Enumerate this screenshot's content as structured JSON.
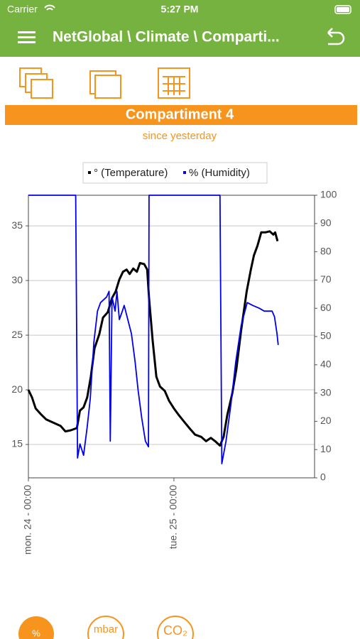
{
  "status_bar": {
    "carrier": "Carrier",
    "time": "5:27 PM"
  },
  "nav_bar": {
    "title": "NetGlobal \\ Climate \\ Comparti..."
  },
  "header": {
    "title": "Compartiment 4",
    "subtitle": "since yesterday"
  },
  "bottom_tabs": [
    "%",
    "mbar",
    "CO₂"
  ],
  "chart_data": {
    "type": "line",
    "grid": true,
    "legend": "top",
    "xlim": [
      0,
      47.2
    ],
    "xticks": [
      {
        "value": 0,
        "label": "mon. 24 - 00:00"
      },
      {
        "value": 24,
        "label": "tue. 25 - 00:00"
      }
    ],
    "ylim": [
      11.95,
      37.8
    ],
    "yticks": [
      15,
      20,
      25,
      30,
      35
    ],
    "y2lim": [
      0,
      100
    ],
    "y2ticks": [
      0,
      10,
      20,
      30,
      40,
      50,
      60,
      70,
      80,
      90,
      100
    ],
    "series": [
      {
        "name": "° (Temperature)",
        "color": "#000000",
        "x": [
          0,
          0.6,
          1.2,
          2.0,
          2.9,
          4.1,
          5.3,
          6.1,
          7.0,
          8.0,
          8.5,
          9.1,
          9.7,
          10.3,
          10.9,
          11.7,
          12.3,
          13.1,
          13.8,
          14.4,
          15.0,
          15.6,
          16.2,
          16.7,
          17.3,
          17.9,
          18.4,
          19.1,
          19.6,
          19.9,
          20.5,
          21.1,
          21.7,
          22.5,
          23.2,
          24.0,
          24.8,
          25.8,
          26.7,
          27.5,
          28.5,
          29.3,
          30.1,
          30.8,
          31.6,
          32.2,
          32.8,
          33.6,
          34.3,
          35.1,
          36.0,
          36.7,
          37.2,
          37.8,
          38.4,
          39.1,
          39.8,
          40.4,
          40.7,
          41.1
        ],
        "values": [
          20.0,
          19.3,
          18.3,
          17.8,
          17.3,
          17.0,
          16.7,
          16.2,
          16.3,
          16.5,
          18.1,
          18.4,
          19.3,
          21.2,
          23.8,
          25.1,
          26.6,
          27.1,
          28.4,
          29.0,
          30.1,
          30.8,
          31.0,
          30.6,
          31.1,
          30.8,
          31.6,
          31.5,
          31.0,
          28.4,
          24.5,
          21.2,
          20.3,
          19.9,
          19.0,
          18.3,
          17.7,
          17.0,
          16.4,
          15.9,
          15.7,
          15.3,
          15.6,
          15.3,
          14.9,
          15.7,
          17.7,
          19.6,
          21.9,
          25.5,
          29.0,
          31.0,
          32.3,
          33.2,
          34.4,
          34.4,
          34.5,
          34.2,
          34.4,
          33.6
        ]
      },
      {
        "name": "% (Humidity)",
        "color": "#0000ee",
        "axis": "y2",
        "x": [
          0,
          7.8,
          8.1,
          8.5,
          9.1,
          9.7,
          10.2,
          10.8,
          11.4,
          11.9,
          12.9,
          13.3,
          13.5,
          13.8,
          14.3,
          14.6,
          15.0,
          15.5,
          15.8,
          16.4,
          17.0,
          17.6,
          18.1,
          18.7,
          19.3,
          19.8,
          19.9,
          31.6,
          31.9,
          32.6,
          33.4,
          34.2,
          35.1,
          36.1,
          37.0,
          38.1,
          38.9,
          40.2,
          40.6,
          41.0,
          41.2
        ],
        "values": [
          100,
          100,
          7,
          12,
          8,
          18,
          28,
          48,
          59,
          62,
          64,
          66,
          13,
          64,
          59,
          66,
          56,
          59,
          61,
          56,
          51,
          41,
          31,
          21,
          13,
          11,
          100,
          100,
          5,
          13,
          26,
          41,
          54,
          62,
          61,
          60,
          59,
          59,
          57,
          51,
          47
        ]
      }
    ]
  }
}
